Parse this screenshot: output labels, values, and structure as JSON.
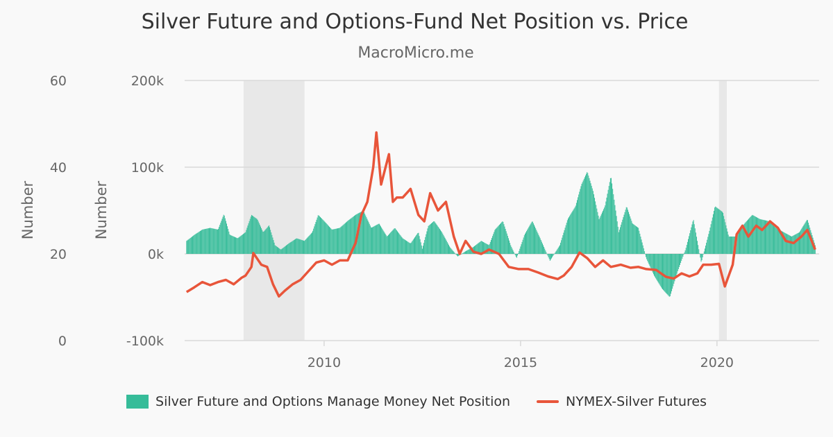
{
  "title": "Silver Future and Options-Fund Net Position vs. Price",
  "subtitle": "MacroMicro.me",
  "colors": {
    "bars": "#36bc99",
    "line": "#e8553a",
    "shading": "#e8e8e8",
    "grid": "#d9d9d9",
    "text": "#666666"
  },
  "legend": {
    "bars_label": "Silver Future and Options Manage Money Net Position",
    "line_label": "NYMEX-Silver Futures"
  },
  "chart_data": {
    "type": "bar+line",
    "title": "Silver Future and Options-Fund Net Position vs. Price",
    "x_range": [
      2006.45,
      2022.6
    ],
    "x_ticks": [
      2010,
      2015,
      2020
    ],
    "x_tick_labels": [
      "2010",
      "2015",
      "2020"
    ],
    "left_axis_outer": {
      "title": "Number",
      "range": [
        0,
        60
      ],
      "ticks": [
        0,
        20,
        40,
        60
      ],
      "tick_labels": [
        "0",
        "20",
        "40",
        "60"
      ],
      "series": "NYMEX-Silver Futures"
    },
    "left_axis_inner": {
      "title": "Number",
      "range": [
        -100000,
        200000
      ],
      "ticks": [
        -100000,
        0,
        100000,
        200000
      ],
      "tick_labels": [
        "-100k",
        "0k",
        "100k",
        "200k"
      ],
      "series": "Silver Future and Options Manage Money Net Position"
    },
    "shaded_periods": [
      [
        2007.95,
        2009.5
      ],
      [
        2020.05,
        2020.25
      ]
    ],
    "series": [
      {
        "name": "Silver Future and Options Manage Money Net Position",
        "type": "bar",
        "axis": "left_axis_inner",
        "points": [
          [
            2006.5,
            15000
          ],
          [
            2006.7,
            22000
          ],
          [
            2006.9,
            28000
          ],
          [
            2007.1,
            30000
          ],
          [
            2007.3,
            28000
          ],
          [
            2007.45,
            46000
          ],
          [
            2007.6,
            22000
          ],
          [
            2007.8,
            18000
          ],
          [
            2008.0,
            25000
          ],
          [
            2008.15,
            45000
          ],
          [
            2008.3,
            40000
          ],
          [
            2008.45,
            25000
          ],
          [
            2008.6,
            33000
          ],
          [
            2008.75,
            10000
          ],
          [
            2008.9,
            5000
          ],
          [
            2009.1,
            12000
          ],
          [
            2009.3,
            18000
          ],
          [
            2009.5,
            15000
          ],
          [
            2009.7,
            25000
          ],
          [
            2009.85,
            45000
          ],
          [
            2010.0,
            38000
          ],
          [
            2010.2,
            28000
          ],
          [
            2010.4,
            30000
          ],
          [
            2010.6,
            38000
          ],
          [
            2010.8,
            45000
          ],
          [
            2011.0,
            50000
          ],
          [
            2011.2,
            30000
          ],
          [
            2011.4,
            35000
          ],
          [
            2011.6,
            20000
          ],
          [
            2011.8,
            30000
          ],
          [
            2012.0,
            18000
          ],
          [
            2012.2,
            12000
          ],
          [
            2012.4,
            25000
          ],
          [
            2012.5,
            6000
          ],
          [
            2012.65,
            32000
          ],
          [
            2012.8,
            38000
          ],
          [
            2013.0,
            25000
          ],
          [
            2013.2,
            8000
          ],
          [
            2013.4,
            -3000
          ],
          [
            2013.6,
            3000
          ],
          [
            2013.8,
            8000
          ],
          [
            2014.0,
            15000
          ],
          [
            2014.2,
            10000
          ],
          [
            2014.35,
            28000
          ],
          [
            2014.55,
            38000
          ],
          [
            2014.75,
            10000
          ],
          [
            2014.9,
            -5000
          ],
          [
            2015.1,
            22000
          ],
          [
            2015.3,
            38000
          ],
          [
            2015.5,
            18000
          ],
          [
            2015.75,
            -8000
          ],
          [
            2016.0,
            10000
          ],
          [
            2016.2,
            40000
          ],
          [
            2016.4,
            55000
          ],
          [
            2016.55,
            80000
          ],
          [
            2016.7,
            95000
          ],
          [
            2016.85,
            72000
          ],
          [
            2017.0,
            40000
          ],
          [
            2017.15,
            55000
          ],
          [
            2017.3,
            90000
          ],
          [
            2017.5,
            25000
          ],
          [
            2017.7,
            55000
          ],
          [
            2017.85,
            35000
          ],
          [
            2018.0,
            30000
          ],
          [
            2018.2,
            -5000
          ],
          [
            2018.4,
            -25000
          ],
          [
            2018.6,
            -40000
          ],
          [
            2018.8,
            -50000
          ],
          [
            2019.0,
            -20000
          ],
          [
            2019.2,
            5000
          ],
          [
            2019.4,
            40000
          ],
          [
            2019.6,
            -10000
          ],
          [
            2019.8,
            25000
          ],
          [
            2019.95,
            55000
          ],
          [
            2020.15,
            48000
          ],
          [
            2020.3,
            20000
          ],
          [
            2020.5,
            20000
          ],
          [
            2020.7,
            35000
          ],
          [
            2020.9,
            45000
          ],
          [
            2021.1,
            40000
          ],
          [
            2021.3,
            38000
          ],
          [
            2021.5,
            30000
          ],
          [
            2021.7,
            25000
          ],
          [
            2021.9,
            20000
          ],
          [
            2022.1,
            25000
          ],
          [
            2022.3,
            40000
          ],
          [
            2022.5,
            10000
          ]
        ]
      },
      {
        "name": "NYMEX-Silver Futures",
        "type": "line",
        "axis": "left_axis_outer",
        "points": [
          [
            2006.5,
            11.2
          ],
          [
            2006.7,
            12.3
          ],
          [
            2006.9,
            13.5
          ],
          [
            2007.1,
            12.8
          ],
          [
            2007.3,
            13.5
          ],
          [
            2007.5,
            14.0
          ],
          [
            2007.7,
            13.0
          ],
          [
            2007.9,
            14.5
          ],
          [
            2008.0,
            15.0
          ],
          [
            2008.15,
            17.0
          ],
          [
            2008.2,
            20.2
          ],
          [
            2008.4,
            17.5
          ],
          [
            2008.55,
            17.0
          ],
          [
            2008.7,
            13.0
          ],
          [
            2008.85,
            10.2
          ],
          [
            2009.0,
            11.5
          ],
          [
            2009.2,
            13.0
          ],
          [
            2009.4,
            14.0
          ],
          [
            2009.6,
            16.0
          ],
          [
            2009.8,
            18.0
          ],
          [
            2010.0,
            18.5
          ],
          [
            2010.2,
            17.5
          ],
          [
            2010.4,
            18.5
          ],
          [
            2010.6,
            18.5
          ],
          [
            2010.8,
            22.5
          ],
          [
            2010.95,
            29.0
          ],
          [
            2011.1,
            32.0
          ],
          [
            2011.25,
            40.0
          ],
          [
            2011.33,
            48.0
          ],
          [
            2011.45,
            36.0
          ],
          [
            2011.65,
            43.0
          ],
          [
            2011.75,
            32.0
          ],
          [
            2011.85,
            33.0
          ],
          [
            2012.0,
            33.0
          ],
          [
            2012.2,
            35.0
          ],
          [
            2012.4,
            29.0
          ],
          [
            2012.55,
            27.5
          ],
          [
            2012.7,
            34.0
          ],
          [
            2012.9,
            30.0
          ],
          [
            2013.1,
            32.0
          ],
          [
            2013.3,
            24.0
          ],
          [
            2013.45,
            20.0
          ],
          [
            2013.6,
            23.0
          ],
          [
            2013.8,
            20.5
          ],
          [
            2014.0,
            20.0
          ],
          [
            2014.2,
            21.0
          ],
          [
            2014.45,
            20.0
          ],
          [
            2014.7,
            17.0
          ],
          [
            2014.95,
            16.5
          ],
          [
            2015.2,
            16.5
          ],
          [
            2015.45,
            15.7
          ],
          [
            2015.7,
            14.8
          ],
          [
            2015.95,
            14.2
          ],
          [
            2016.1,
            15.0
          ],
          [
            2016.3,
            17.0
          ],
          [
            2016.5,
            20.3
          ],
          [
            2016.7,
            19.0
          ],
          [
            2016.9,
            17.0
          ],
          [
            2017.1,
            18.5
          ],
          [
            2017.3,
            17.0
          ],
          [
            2017.55,
            17.5
          ],
          [
            2017.8,
            16.8
          ],
          [
            2018.0,
            17.0
          ],
          [
            2018.2,
            16.5
          ],
          [
            2018.45,
            16.3
          ],
          [
            2018.7,
            14.7
          ],
          [
            2018.9,
            14.3
          ],
          [
            2019.1,
            15.5
          ],
          [
            2019.3,
            14.8
          ],
          [
            2019.5,
            15.5
          ],
          [
            2019.65,
            17.5
          ],
          [
            2019.85,
            17.5
          ],
          [
            2020.05,
            17.7
          ],
          [
            2020.2,
            12.5
          ],
          [
            2020.4,
            17.5
          ],
          [
            2020.5,
            24.5
          ],
          [
            2020.65,
            26.5
          ],
          [
            2020.8,
            24.0
          ],
          [
            2021.0,
            26.5
          ],
          [
            2021.15,
            25.5
          ],
          [
            2021.35,
            27.5
          ],
          [
            2021.55,
            26.0
          ],
          [
            2021.75,
            23.0
          ],
          [
            2021.95,
            22.5
          ],
          [
            2022.15,
            24.0
          ],
          [
            2022.3,
            25.5
          ],
          [
            2022.5,
            21.0
          ]
        ]
      }
    ]
  }
}
